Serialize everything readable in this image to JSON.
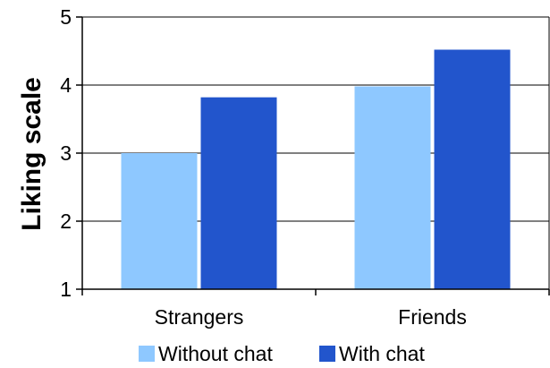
{
  "chart_data": {
    "type": "bar",
    "categories": [
      "Strangers",
      "Friends"
    ],
    "series": [
      {
        "name": "Without chat",
        "values": [
          3.0,
          3.98
        ],
        "color": "#8ec8ff"
      },
      {
        "name": "With chat",
        "values": [
          3.82,
          4.52
        ],
        "color": "#2255cc"
      }
    ],
    "title": "",
    "xlabel": "",
    "ylabel": "Liking scale",
    "ylim": [
      1,
      5
    ],
    "yticks": [
      1,
      2,
      3,
      4,
      5
    ],
    "grid": true,
    "legend_position": "bottom"
  }
}
